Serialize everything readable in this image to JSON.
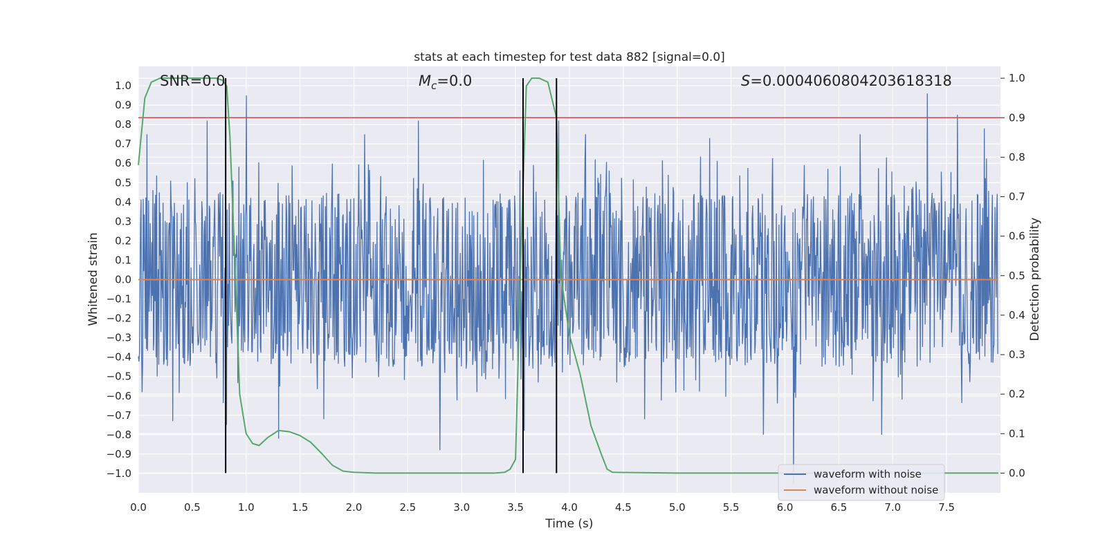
{
  "chart_data": {
    "type": "line",
    "title": "stats at each timestep for test data 882 [signal=0.0]",
    "xlabel": "Time (s)",
    "ylabel": "Whitened strain",
    "y2label": "Detection probability",
    "xlim": [
      0.0,
      8.0
    ],
    "ylim": [
      -1.1,
      1.1
    ],
    "y2lim": [
      -0.05,
      1.03
    ],
    "x_ticks": [
      0.0,
      0.5,
      1.0,
      1.5,
      2.0,
      2.5,
      3.0,
      3.5,
      4.0,
      4.5,
      5.0,
      5.5,
      6.0,
      6.5,
      7.0,
      7.5
    ],
    "x_tick_labels": [
      "0.0",
      "0.5",
      "1.0",
      "1.5",
      "2.0",
      "2.5",
      "3.0",
      "3.5",
      "4.0",
      "4.5",
      "5.0",
      "5.5",
      "6.0",
      "6.5",
      "7.0",
      "7.5"
    ],
    "y_ticks": [
      1.0,
      0.9,
      0.8,
      0.7,
      0.6,
      0.5,
      0.4,
      0.3,
      0.2,
      0.1,
      0.0,
      -0.1,
      -0.2,
      -0.3,
      -0.4,
      -0.5,
      -0.6,
      -0.7,
      -0.8,
      -0.9,
      -1.0
    ],
    "y_tick_labels": [
      "1.0",
      "0.9",
      "0.8",
      "0.7",
      "0.6",
      "0.5",
      "0.4",
      "0.3",
      "0.2",
      "0.1",
      "0.0",
      "−0.1",
      "−0.2",
      "−0.3",
      "−0.4",
      "−0.5",
      "−0.6",
      "−0.7",
      "−0.8",
      "−0.9",
      "−1.0"
    ],
    "y2_ticks": [
      1.0,
      0.9,
      0.8,
      0.7,
      0.6,
      0.5,
      0.4,
      0.3,
      0.2,
      0.1,
      0.0
    ],
    "y2_tick_labels": [
      "1.0",
      "0.9",
      "0.8",
      "0.7",
      "0.6",
      "0.5",
      "0.4",
      "0.3",
      "0.2",
      "0.1",
      "0.0"
    ],
    "annotations": {
      "snr": "SNR=0.0",
      "mc_symbol": "M",
      "mc_sub": "c",
      "mc_value": "=0.0",
      "s_symbol": "S",
      "s_value": "=0.0004060804203618318"
    },
    "series": [
      {
        "name": "waveform with noise",
        "axis": "left",
        "color": "#4c72b0",
        "description": "dense noise trace, mostly between -0.45 and 0.45 with spikes",
        "spikes": [
          {
            "x": 0.08,
            "y": 0.75
          },
          {
            "x": 0.32,
            "y": -0.73
          },
          {
            "x": 0.64,
            "y": 0.82
          },
          {
            "x": 0.82,
            "y": -0.75
          },
          {
            "x": 1.0,
            "y": 0.95
          },
          {
            "x": 1.3,
            "y": -0.82
          },
          {
            "x": 1.72,
            "y": -0.72
          },
          {
            "x": 2.1,
            "y": 0.75
          },
          {
            "x": 2.6,
            "y": 0.82
          },
          {
            "x": 2.8,
            "y": -0.88
          },
          {
            "x": 3.58,
            "y": -0.78
          },
          {
            "x": 3.9,
            "y": 0.82
          },
          {
            "x": 4.15,
            "y": 0.75
          },
          {
            "x": 4.7,
            "y": -0.72
          },
          {
            "x": 5.3,
            "y": 0.73
          },
          {
            "x": 5.8,
            "y": -0.8
          },
          {
            "x": 6.08,
            "y": -1.05
          },
          {
            "x": 6.7,
            "y": 0.75
          },
          {
            "x": 6.9,
            "y": -0.8
          },
          {
            "x": 7.32,
            "y": 0.96
          },
          {
            "x": 7.6,
            "y": 0.85
          },
          {
            "x": 7.85,
            "y": 0.78
          }
        ]
      },
      {
        "name": "waveform without noise",
        "axis": "left",
        "color": "#dd8452",
        "x": [
          0.0,
          7.98
        ],
        "y": [
          0.0,
          0.0
        ]
      },
      {
        "name": "Detection probability",
        "axis": "right",
        "color": "#55a868",
        "x": [
          0.0,
          0.06,
          0.12,
          0.2,
          0.3,
          0.45,
          0.6,
          0.72,
          0.78,
          0.82,
          0.85,
          0.9,
          0.94,
          1.0,
          1.06,
          1.12,
          1.2,
          1.3,
          1.4,
          1.5,
          1.6,
          1.7,
          1.8,
          1.9,
          2.0,
          2.2,
          2.5,
          3.0,
          3.3,
          3.4,
          3.45,
          3.5,
          3.55,
          3.6,
          3.65,
          3.72,
          3.8,
          3.88,
          3.92,
          4.0,
          4.1,
          4.2,
          4.3,
          4.35,
          4.4,
          5.0,
          6.0,
          7.0,
          7.98
        ],
        "y": [
          0.78,
          0.95,
          0.99,
          1.0,
          1.0,
          1.0,
          1.0,
          1.0,
          0.995,
          0.98,
          0.85,
          0.5,
          0.2,
          0.1,
          0.075,
          0.07,
          0.09,
          0.108,
          0.105,
          0.095,
          0.078,
          0.05,
          0.02,
          0.005,
          0.002,
          0.0,
          0.0,
          0.0,
          0.0,
          0.002,
          0.01,
          0.035,
          0.55,
          0.98,
          1.0,
          1.0,
          0.99,
          0.9,
          0.5,
          0.35,
          0.25,
          0.12,
          0.045,
          0.01,
          0.002,
          0.0,
          0.0,
          0.0,
          0.0
        ]
      }
    ],
    "hlines": [
      {
        "axis": "right",
        "y": 0.9,
        "color": "#c44e52"
      }
    ],
    "vlines": [
      {
        "x": 0.81,
        "ymin": 0.0,
        "ymax": 1.0,
        "axis": "right",
        "color": "#000000"
      },
      {
        "x": 3.57,
        "ymin": 0.0,
        "ymax": 1.0,
        "axis": "right",
        "color": "#000000"
      },
      {
        "x": 3.88,
        "ymin": 0.0,
        "ymax": 1.0,
        "axis": "right",
        "color": "#000000"
      }
    ],
    "legend": {
      "location": "lower-right",
      "entries": [
        "waveform with noise",
        "waveform without noise"
      ]
    },
    "grid": true
  }
}
